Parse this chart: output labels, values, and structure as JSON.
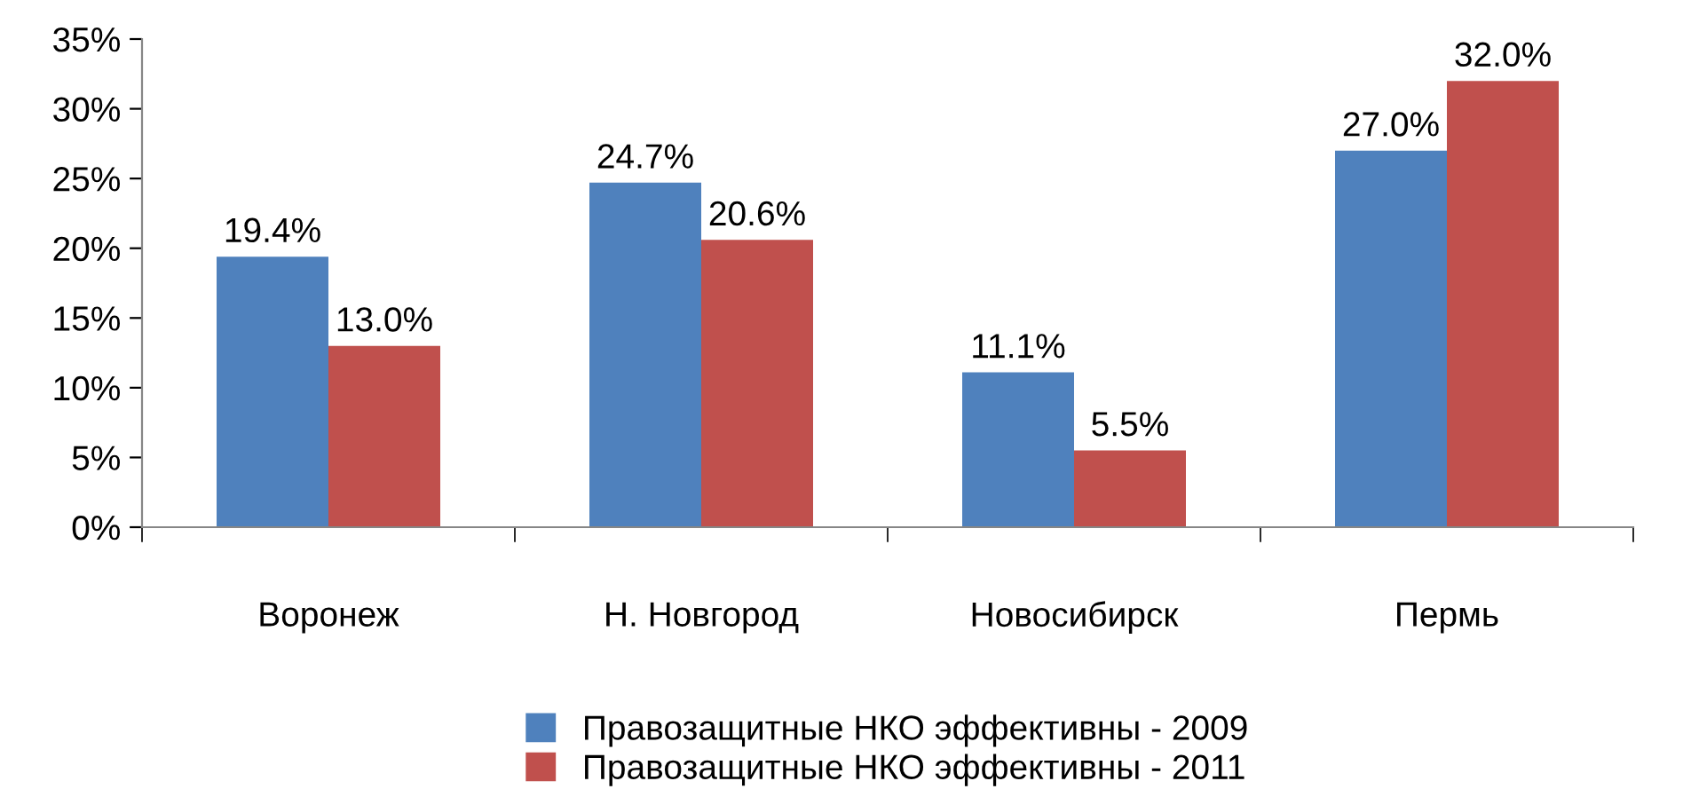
{
  "chart_data": {
    "type": "bar",
    "categories": [
      "Воронеж",
      "Н. Новгород",
      "Новосибирск",
      "Пермь"
    ],
    "series": [
      {
        "name": "Правозащитные НКО эффективны - 2009",
        "color": "#4f81bd",
        "values": [
          19.4,
          24.7,
          11.1,
          27.0
        ],
        "value_labels": [
          "19.4%",
          "24.7%",
          "11.1%",
          "27.0%"
        ]
      },
      {
        "name": "Правозащитные НКО эффективны - 2011",
        "color": "#c0504d",
        "values": [
          13.0,
          20.6,
          5.5,
          32.0
        ],
        "value_labels": [
          "13.0%",
          "20.6%",
          "5.5%",
          "32.0%"
        ]
      }
    ],
    "ylim": [
      0,
      35
    ],
    "yticks": [
      {
        "value": 0,
        "label": "0%"
      },
      {
        "value": 5,
        "label": "5%"
      },
      {
        "value": 10,
        "label": "10%"
      },
      {
        "value": 15,
        "label": "15%"
      },
      {
        "value": 20,
        "label": "20%"
      },
      {
        "value": 25,
        "label": "25%"
      },
      {
        "value": 30,
        "label": "30%"
      },
      {
        "value": 35,
        "label": "35%"
      }
    ],
    "grid": false,
    "legend": "bottom"
  }
}
